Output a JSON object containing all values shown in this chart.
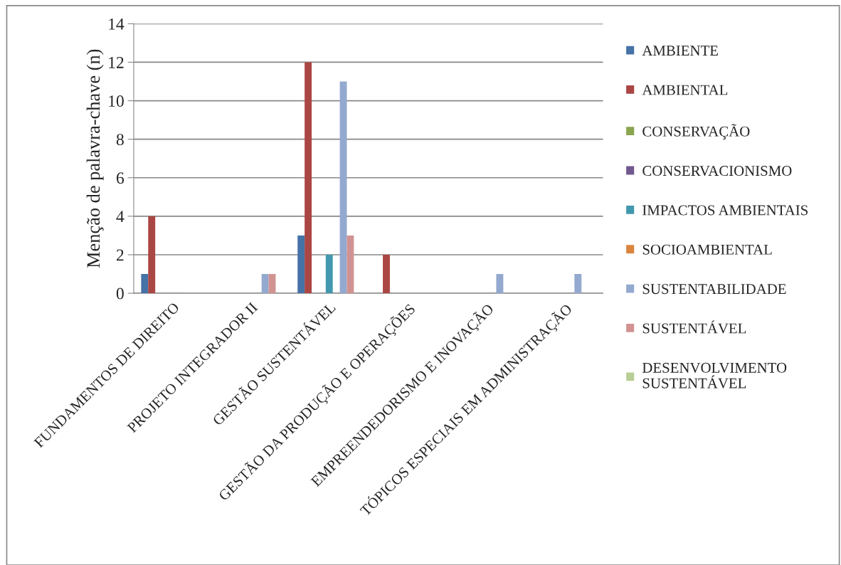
{
  "chart_data": {
    "type": "bar",
    "ylabel": "Menção de palavra-chave (n)",
    "categories": [
      "FUNDAMENTOS DE DIREITO",
      "PROJETO INTEGRADOR II",
      "GESTÃO SUSTENTÁVEL",
      "GESTÃO DA PRODUÇÃO E OPERAÇÕES",
      "EMPREENDEDORISMO E INOVAÇÃO",
      "TÓPICOS ESPECIAIS EM ADMINISTRAÇÃO"
    ],
    "series": [
      {
        "name": "AMBIENTE",
        "color": "#4572a7",
        "values": [
          1,
          0,
          3,
          0,
          0,
          0
        ]
      },
      {
        "name": "AMBIENTAL",
        "color": "#aa4643",
        "values": [
          4,
          0,
          12,
          2,
          0,
          0
        ]
      },
      {
        "name": "CONSERVAÇÃO",
        "color": "#89a54e",
        "values": [
          0,
          0,
          0,
          0,
          0,
          0
        ]
      },
      {
        "name": "CONSERVACIONISMO",
        "color": "#71588f",
        "values": [
          0,
          0,
          0,
          0,
          0,
          0
        ]
      },
      {
        "name": "IMPACTOS AMBIENTAIS",
        "color": "#4198af",
        "values": [
          0,
          0,
          2,
          0,
          0,
          0
        ]
      },
      {
        "name": "SOCIOAMBIENTAL",
        "color": "#db843d",
        "values": [
          0,
          0,
          0,
          0,
          0,
          0
        ]
      },
      {
        "name": "SUSTENTABILIDADE",
        "color": "#93a9cf",
        "values": [
          0,
          1,
          11,
          0,
          1,
          1
        ]
      },
      {
        "name": "SUSTENTÁVEL",
        "color": "#d19392",
        "values": [
          0,
          1,
          3,
          0,
          0,
          0
        ]
      },
      {
        "name": "DESENVOLVIMENTO\nSUSTENTÁVEL",
        "color": "#b9cd96",
        "values": [
          0,
          0,
          0,
          0,
          0,
          0
        ]
      }
    ],
    "ylim": [
      0,
      14
    ],
    "yticks": [
      0,
      2,
      4,
      6,
      8,
      10,
      12,
      14
    ],
    "grid": "y",
    "legend": "right"
  }
}
